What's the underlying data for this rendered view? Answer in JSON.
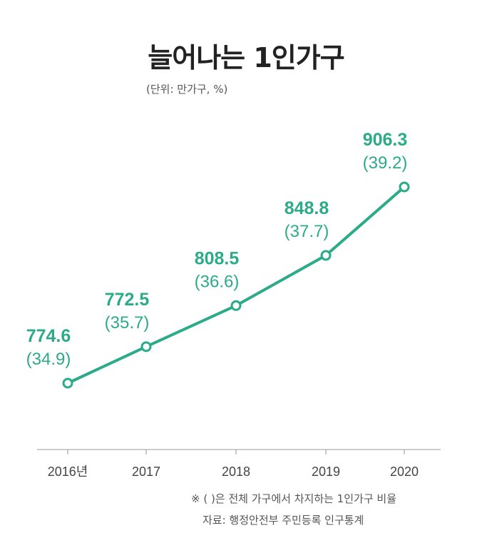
{
  "chart_data": {
    "type": "line",
    "title": "늘어나는 1인가구",
    "unit_label": "(단위: 만가구, %)",
    "categories": [
      "2016년",
      "2017",
      "2018",
      "2019",
      "2020"
    ],
    "series": [
      {
        "values": [
          774.6,
          772.5,
          808.5,
          848.8,
          906.3
        ],
        "ratios": [
          "(34.9)",
          "(35.7)",
          "(36.6)",
          "(37.7)",
          "(39.2)"
        ],
        "value_labels": [
          "774.6",
          "772.5",
          "808.5",
          "848.8",
          "906.3"
        ]
      }
    ],
    "plotted_ratio_values": [
      34.9,
      35.7,
      36.6,
      37.7,
      39.2
    ],
    "grid": false,
    "color": "#2bab8a"
  },
  "notes": {
    "line1": "※ ( )은 전체 가구에서 차지하는 1인가구 비율",
    "line2": "자료: 행정안전부 주민등록 인구통계"
  }
}
